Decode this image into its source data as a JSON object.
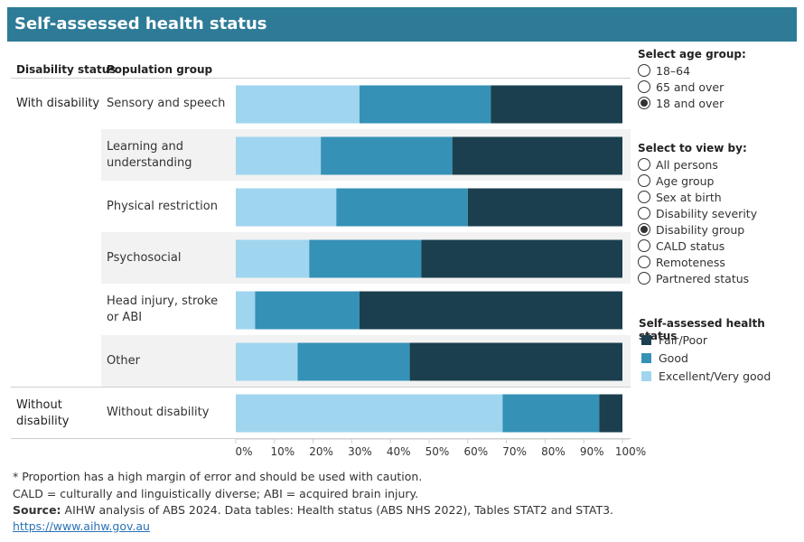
{
  "title": "Self-assessed health status",
  "headers": {
    "disability_status": "Disability status",
    "population_group": "Population group"
  },
  "groups": [
    {
      "label": "With disability"
    },
    {
      "label": "Without disability"
    }
  ],
  "age_panel": {
    "heading": "Select age group:",
    "options": [
      {
        "label": "18–64",
        "selected": false
      },
      {
        "label": "65 and over",
        "selected": false
      },
      {
        "label": "18 and over",
        "selected": true
      }
    ]
  },
  "view_panel": {
    "heading": "Select to view by:",
    "options": [
      {
        "label": "All persons",
        "selected": false
      },
      {
        "label": "Age group",
        "selected": false
      },
      {
        "label": "Sex at birth",
        "selected": false
      },
      {
        "label": "Disability severity",
        "selected": false
      },
      {
        "label": "Disability group",
        "selected": true
      },
      {
        "label": "CALD status",
        "selected": false
      },
      {
        "label": "Remoteness",
        "selected": false
      },
      {
        "label": "Partnered status",
        "selected": false
      }
    ]
  },
  "legend": {
    "heading": "Self-assessed health status",
    "items": [
      {
        "label": "Fair/Poor",
        "color": "#1b3f4e"
      },
      {
        "label": "Good",
        "color": "#3591b6"
      },
      {
        "label": "Excellent/Very good",
        "color": "#a0d5ef"
      }
    ]
  },
  "chart_data": {
    "type": "bar",
    "orientation": "horizontal",
    "stacked": true,
    "categories": [
      "Sensory and speech",
      "Learning and understanding",
      "Physical restriction",
      "Psychosocial",
      "Head injury, stroke or ABI",
      "Other",
      "Without disability"
    ],
    "category_groups": [
      "With disability",
      "With disability",
      "With disability",
      "With disability",
      "With disability",
      "With disability",
      "Without disability"
    ],
    "series": [
      {
        "name": "Excellent/Very good",
        "color": "#a0d5ef",
        "values": [
          32,
          22,
          26,
          19,
          5,
          16,
          69
        ]
      },
      {
        "name": "Good",
        "color": "#3591b6",
        "values": [
          34,
          34,
          34,
          29,
          27,
          29,
          25
        ]
      },
      {
        "name": "Fair/Poor",
        "color": "#1b3f4e",
        "values": [
          34,
          44,
          40,
          52,
          68,
          55,
          6
        ]
      }
    ],
    "xlim": [
      0,
      100
    ],
    "xticks": [
      "0%",
      "10%",
      "20%",
      "30%",
      "40%",
      "50%",
      "60%",
      "70%",
      "80%",
      "90%",
      "100%"
    ]
  },
  "footnotes": {
    "note1": "* Proportion has a high margin of error and should be used with caution.",
    "note2": "CALD = culturally and linguistically diverse; ABI = acquired brain injury.",
    "source_label": "Source:",
    "source_text": " AIHW analysis of ABS 2024. Data tables: Health status (ABS NHS 2022), Tables STAT2 and STAT3.",
    "link": "https://www.aihw.gov.au"
  }
}
